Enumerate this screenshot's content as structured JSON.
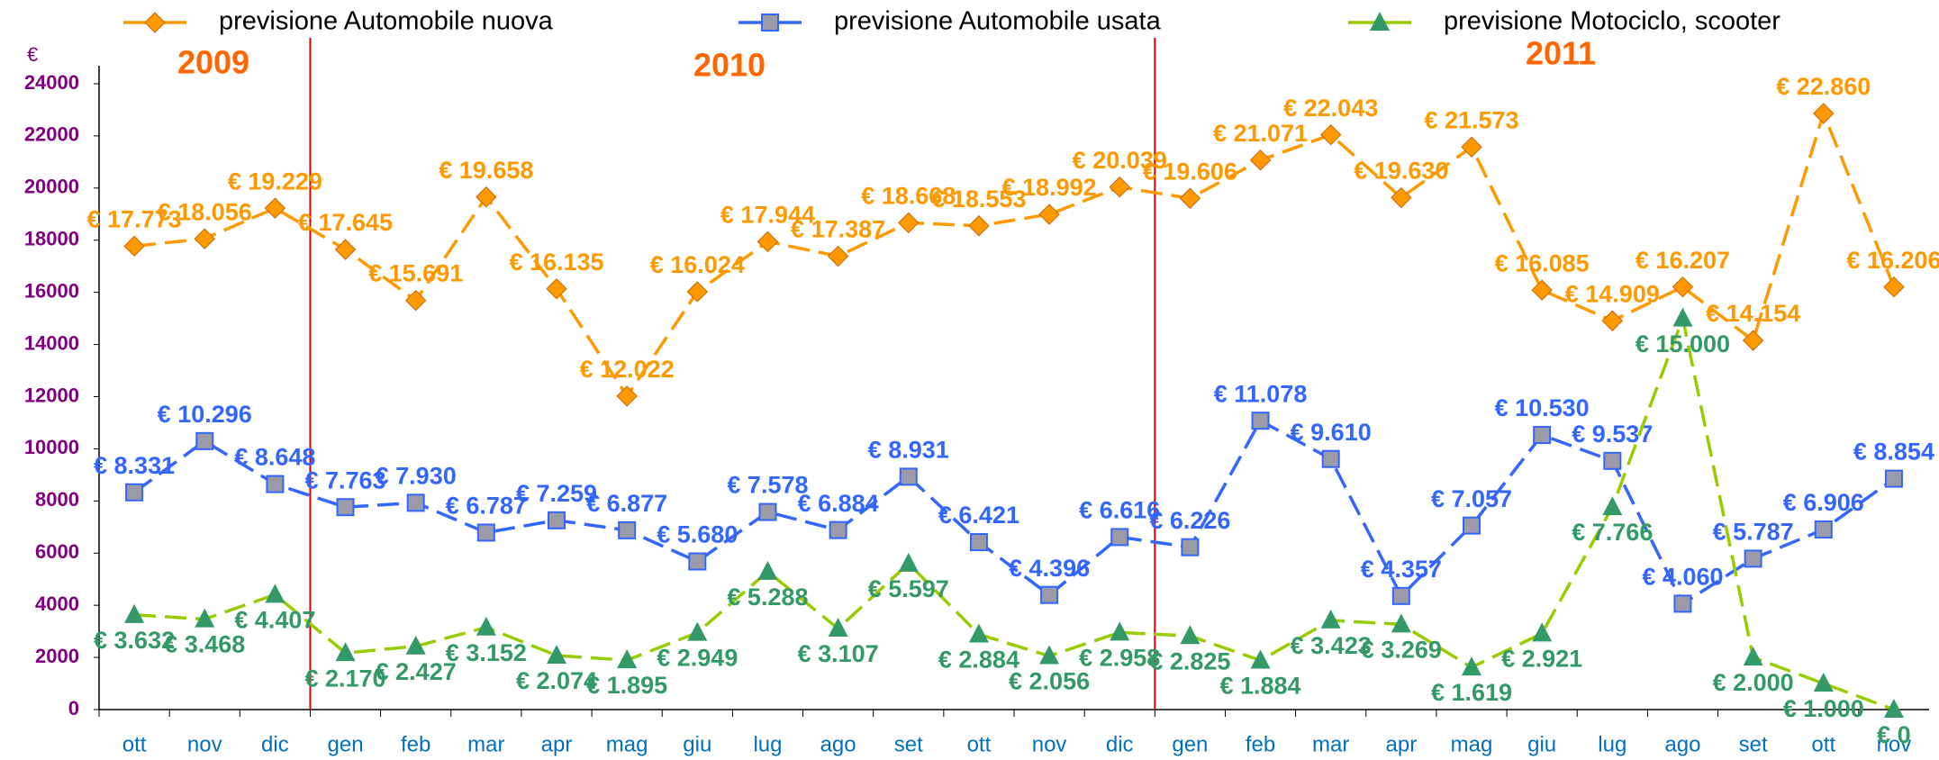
{
  "chart_data": {
    "type": "line",
    "y_unit_label": "€",
    "annotations": [
      "2009",
      "2010",
      "2011"
    ],
    "categories": [
      "ott",
      "nov",
      "dic",
      "gen",
      "feb",
      "mar",
      "apr",
      "mag",
      "giu",
      "lug",
      "ago",
      "set",
      "ott",
      "nov",
      "dic",
      "gen",
      "feb",
      "mar",
      "apr",
      "mag",
      "giu",
      "lug",
      "ago",
      "set",
      "ott",
      "nov"
    ],
    "ylim": [
      0,
      24000
    ],
    "yticks": [
      0,
      2000,
      4000,
      6000,
      8000,
      10000,
      12000,
      14000,
      16000,
      18000,
      20000,
      22000,
      24000
    ],
    "series": [
      {
        "name": "previsione Automobile nuova",
        "color": "#ff9900",
        "marker": "diamond",
        "marker_color": "#ff9900",
        "values": [
          17773,
          18056,
          19229,
          17645,
          15691,
          19658,
          16135,
          12022,
          16024,
          17944,
          17387,
          18668,
          18553,
          18992,
          20039,
          19606,
          21071,
          22043,
          19630,
          21573,
          16085,
          14909,
          16207,
          14154,
          22860,
          16206
        ],
        "value_labels": [
          "€ 17.773",
          "€ 18.056",
          "€ 19.229",
          "€ 17.645",
          "€ 15.691",
          "€ 19.658",
          "€ 16.135",
          "€ 12.022",
          "€ 16.024",
          "€ 17.944",
          "€ 17.387",
          "€ 18.668",
          "€ 18.553",
          "€ 18.992",
          "€ 20.039",
          "€ 19.606",
          "€ 21.071",
          "€ 22.043",
          "€ 19.630",
          "€ 21.573",
          "€ 16.085",
          "€ 14.909",
          "€ 16.207",
          "€ 14.154",
          "€ 22.860",
          "€ 16.206"
        ]
      },
      {
        "name": "previsione Automobile usata",
        "color": "#3366ff",
        "marker": "square",
        "marker_color": "#3366ff",
        "values": [
          8331,
          10296,
          8648,
          7763,
          7930,
          6787,
          7259,
          6877,
          5680,
          7578,
          6884,
          8931,
          6421,
          4396,
          6616,
          6226,
          11078,
          9610,
          4357,
          7057,
          10530,
          9537,
          4060,
          5787,
          6906,
          8854
        ],
        "value_labels": [
          "€ 8.331",
          "€ 10.296",
          "€ 8.648",
          "€ 7.763",
          "€ 7.930",
          "€ 6.787",
          "€ 7.259",
          "€ 6.877",
          "€ 5.680",
          "€ 7.578",
          "€ 6.884",
          "€ 8.931",
          "€ 6.421",
          "€ 4.396",
          "€ 6.616",
          "€ 6.226",
          "€ 11.078",
          "€ 9.610",
          "€ 4.357",
          "€ 7.057",
          "€ 10.530",
          "€ 9.537",
          "€ 4.060",
          "€ 5.787",
          "€ 6.906",
          "€ 8.854"
        ]
      },
      {
        "name": "previsione Motociclo, scooter",
        "color": "#99cc00",
        "marker": "triangle",
        "marker_color": "#339966",
        "values": [
          3632,
          3468,
          4407,
          2170,
          2427,
          3152,
          2074,
          1895,
          2949,
          5288,
          3107,
          5597,
          2884,
          2056,
          2958,
          2825,
          1884,
          3423,
          3269,
          1619,
          2921,
          7766,
          15000,
          2000,
          1000,
          0
        ],
        "value_labels": [
          "€ 3.632",
          "€ 3.468",
          "€ 4.407",
          "€ 2.170",
          "€ 2.427",
          "€ 3.152",
          "€ 2.074",
          "€ 1.895",
          "€ 2.949",
          "€ 5.288",
          "€ 3.107",
          "€ 5.597",
          "€ 2.884",
          "€ 2.056",
          "€ 2.958",
          "€ 2.825",
          "€ 1.884",
          "€ 3.423",
          "€ 3.269",
          "€ 1.619",
          "€ 2.921",
          "€ 7.766",
          "€ 15.000",
          "€ 2.000",
          "€ 1.000",
          "€ 0"
        ]
      }
    ]
  }
}
